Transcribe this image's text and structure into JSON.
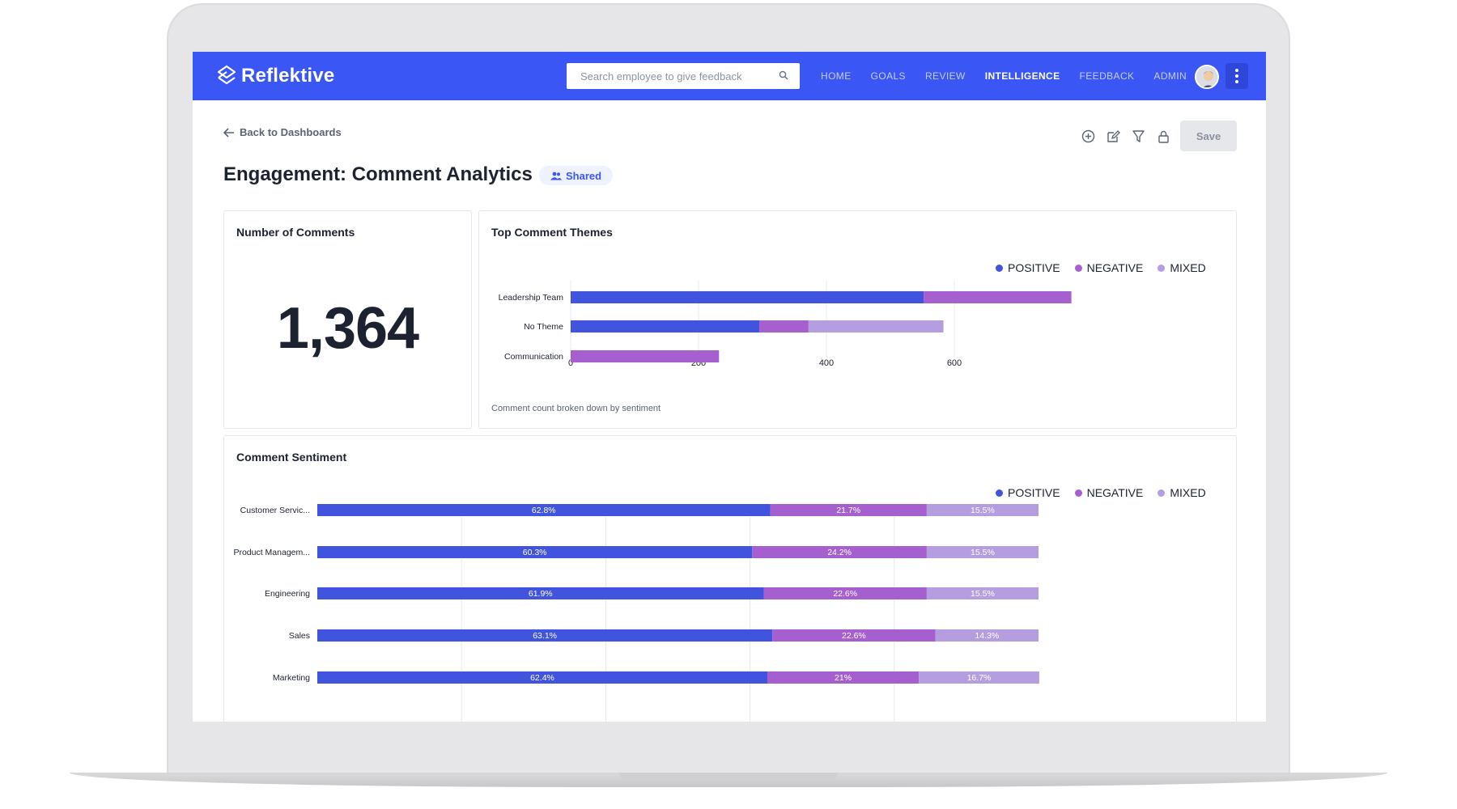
{
  "colors": {
    "brand": "#3a56f5",
    "positive": "#4154de",
    "negative": "#a55fcf",
    "mixed": "#b59ee0"
  },
  "topbar": {
    "logo_text": "Reflektive",
    "search_placeholder": "Search employee to give feedback",
    "nav": [
      "HOME",
      "GOALS",
      "REVIEW",
      "INTELLIGENCE",
      "FEEDBACK",
      "ADMIN"
    ],
    "active_nav": "INTELLIGENCE"
  },
  "header": {
    "back_label": "Back to Dashboards",
    "title": "Engagement: Comment Analytics",
    "shared_label": "Shared",
    "save_label": "Save",
    "toolbar_icons": [
      "add-circle-icon",
      "edit-icon",
      "filter-icon",
      "lock-icon"
    ]
  },
  "comments_card": {
    "title": "Number of Comments",
    "value": "1,364"
  },
  "themes_card": {
    "title": "Top Comment Themes",
    "note": "Comment count broken down by sentiment"
  },
  "sentiment_card": {
    "title": "Comment Sentiment"
  },
  "legend": [
    "POSITIVE",
    "NEGATIVE",
    "MIXED"
  ],
  "chart_data": [
    {
      "type": "bar",
      "orientation": "horizontal",
      "stacked": true,
      "title": "Top Comment Themes",
      "categories": [
        "Leadership Team",
        "No Theme",
        "Communication"
      ],
      "series": [
        {
          "name": "POSITIVE",
          "values": [
            552,
            295,
            0
          ]
        },
        {
          "name": "NEGATIVE",
          "values": [
            231,
            77,
            232
          ]
        },
        {
          "name": "MIXED",
          "values": [
            0,
            211,
            0
          ]
        }
      ],
      "xlim": [
        0,
        780
      ],
      "xticks": [
        0,
        200,
        400,
        600
      ],
      "grid": true,
      "legend": "top-right"
    },
    {
      "type": "bar",
      "orientation": "horizontal",
      "stacked": true,
      "percent": true,
      "title": "Comment Sentiment",
      "categories": [
        "Customer Servic...",
        "Product Managem...",
        "Engineering",
        "Sales",
        "Marketing"
      ],
      "series": [
        {
          "name": "POSITIVE",
          "values": [
            62.8,
            60.3,
            61.9,
            63.1,
            62.4
          ],
          "labels": [
            "62.8%",
            "60.3%",
            "61.9%",
            "63.1%",
            "62.4%"
          ]
        },
        {
          "name": "NEGATIVE",
          "values": [
            21.7,
            24.2,
            22.6,
            22.6,
            21.0
          ],
          "labels": [
            "21.7%",
            "24.2%",
            "22.6%",
            "22.6%",
            "21%"
          ]
        },
        {
          "name": "MIXED",
          "values": [
            15.5,
            15.5,
            15.5,
            14.3,
            16.7
          ],
          "labels": [
            "15.5%",
            "15.5%",
            "15.5%",
            "14.3%",
            "16.7%"
          ]
        }
      ],
      "xlim": [
        0,
        100
      ],
      "grid": true,
      "legend": "top-right"
    }
  ]
}
